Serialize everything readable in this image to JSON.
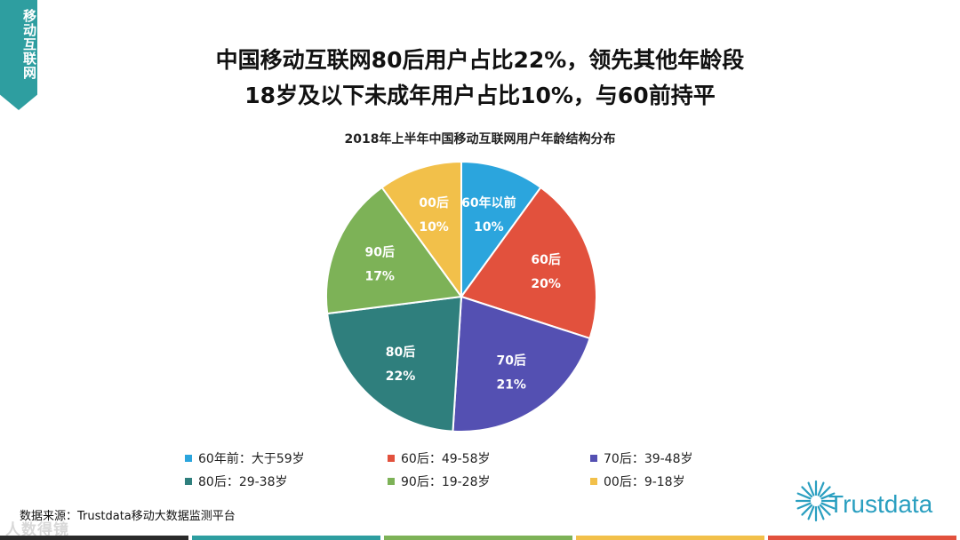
{
  "side_tab": "移动互联网",
  "headline": {
    "line1": "中国移动互联网80后用户占比22%，领先其他年龄段",
    "line2": "18岁及以下未成年用户占比10%，与60前持平"
  },
  "chart_data": {
    "type": "pie",
    "title": "2018年上半年中国移动互联网用户年龄结构分布",
    "slices": [
      {
        "label": "60年以前",
        "value": 10,
        "value_label": "10%",
        "color": "#2ba5dd"
      },
      {
        "label": "60后",
        "value": 20,
        "value_label": "20%",
        "color": "#e2513d"
      },
      {
        "label": "70后",
        "value": 21,
        "value_label": "21%",
        "color": "#5450b2"
      },
      {
        "label": "80后",
        "value": 22,
        "value_label": "22%",
        "color": "#2f7f7d"
      },
      {
        "label": "90后",
        "value": 17,
        "value_label": "17%",
        "color": "#7db257"
      },
      {
        "label": "00后",
        "value": 10,
        "value_label": "10%",
        "color": "#f2c04a"
      }
    ],
    "legend": [
      {
        "text": "60年前：大于59岁",
        "color": "#2ba5dd"
      },
      {
        "text": "60后：49-58岁",
        "color": "#e2513d"
      },
      {
        "text": "70后：39-48岁",
        "color": "#5450b2"
      },
      {
        "text": "80后：29-38岁",
        "color": "#2f7f7d"
      },
      {
        "text": "90后：19-28岁",
        "color": "#7db257"
      },
      {
        "text": "00后：9-18岁",
        "color": "#f2c04a"
      }
    ]
  },
  "source": "数据来源：Trustdata移动大数据监测平台",
  "watermark": "人数得镜",
  "brand": {
    "name": "Trustdata",
    "color": "#2a9fc0"
  },
  "bottom_bar_colors": [
    "#2b2b2b",
    "#2e9ea0",
    "#7db257",
    "#f2c04a",
    "#e2513d"
  ]
}
